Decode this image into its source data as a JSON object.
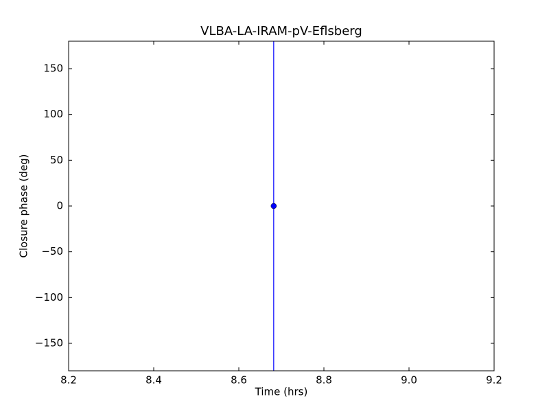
{
  "chart_data": {
    "type": "errorbar",
    "title": "VLBA-LA-IRAM-pV-Eflsberg",
    "x_label": "Time (hrs)",
    "y_label": "Closure phase (deg)",
    "x": [
      8.682
    ],
    "values": [
      0
    ],
    "yerr": [
      200
    ],
    "color": "#0000ff",
    "xlim": [
      8.2,
      9.2
    ],
    "xticks": [
      8.2,
      8.4,
      8.6,
      8.8,
      {
        "value": 9,
        "label": "9.0"
      },
      9.2
    ],
    "ylim": [
      -180,
      180
    ],
    "yticks": [
      {
        "value": -150,
        "label": "−150"
      },
      {
        "value": -100,
        "label": "−100"
      },
      {
        "value": -50,
        "label": "−50"
      },
      0,
      50,
      100,
      150
    ]
  }
}
